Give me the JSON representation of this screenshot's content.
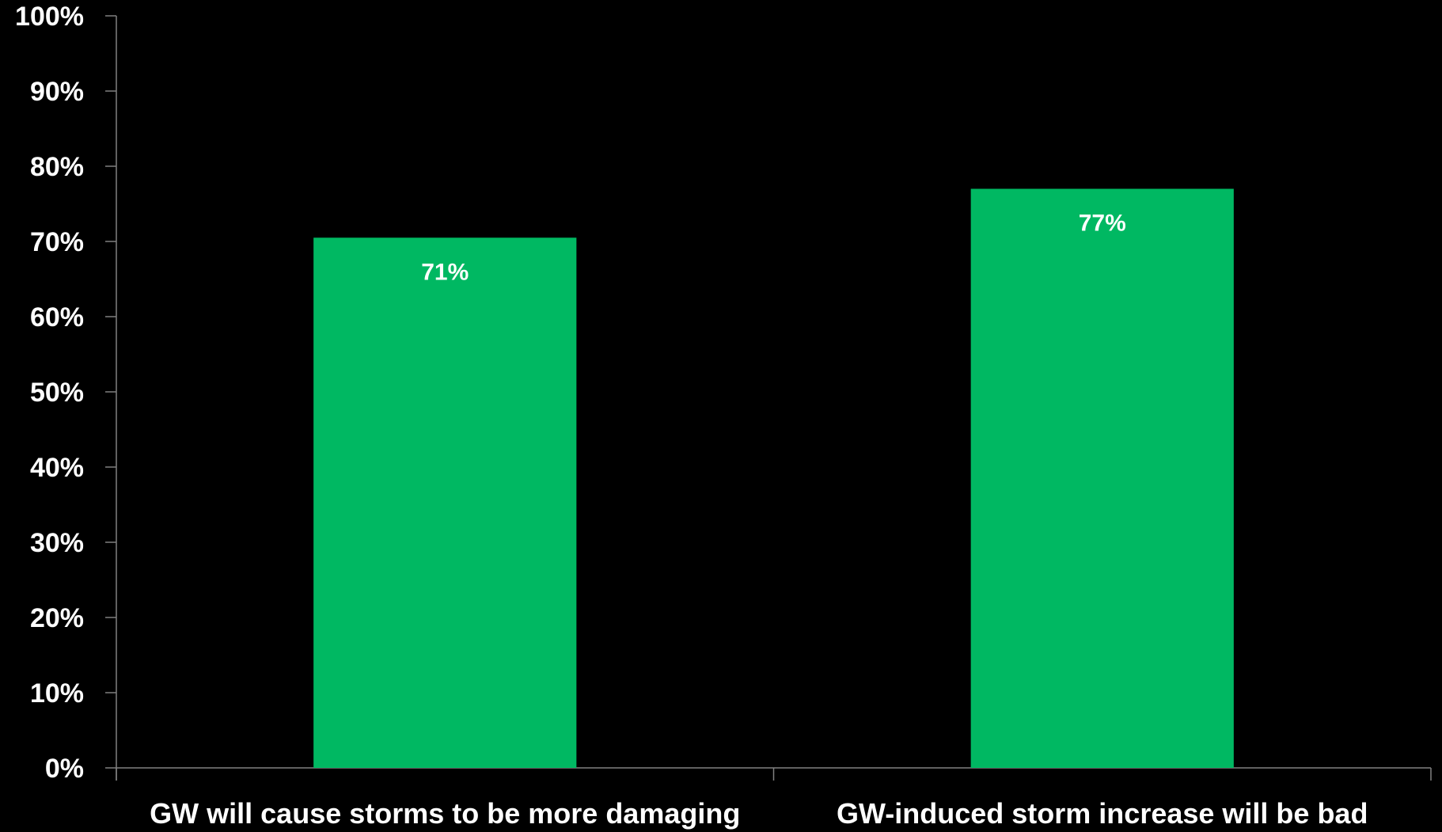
{
  "chart_data": {
    "type": "bar",
    "categories": [
      "GW will cause storms to be more damaging",
      "GW-induced storm increase will be bad"
    ],
    "values": [
      70.5,
      77
    ],
    "data_labels": [
      "71%",
      "77%"
    ],
    "ylim": [
      0,
      100
    ],
    "yticks": [
      0,
      10,
      20,
      30,
      40,
      50,
      60,
      70,
      80,
      90,
      100
    ],
    "ytick_labels": [
      "0%",
      "10%",
      "20%",
      "30%",
      "40%",
      "50%",
      "60%",
      "70%",
      "80%",
      "90%",
      "100%"
    ],
    "grid": false,
    "legend": "none",
    "colors": {
      "bar": "#00b862",
      "axis": "#808080",
      "background": "#000000",
      "text": "#ffffff"
    }
  }
}
